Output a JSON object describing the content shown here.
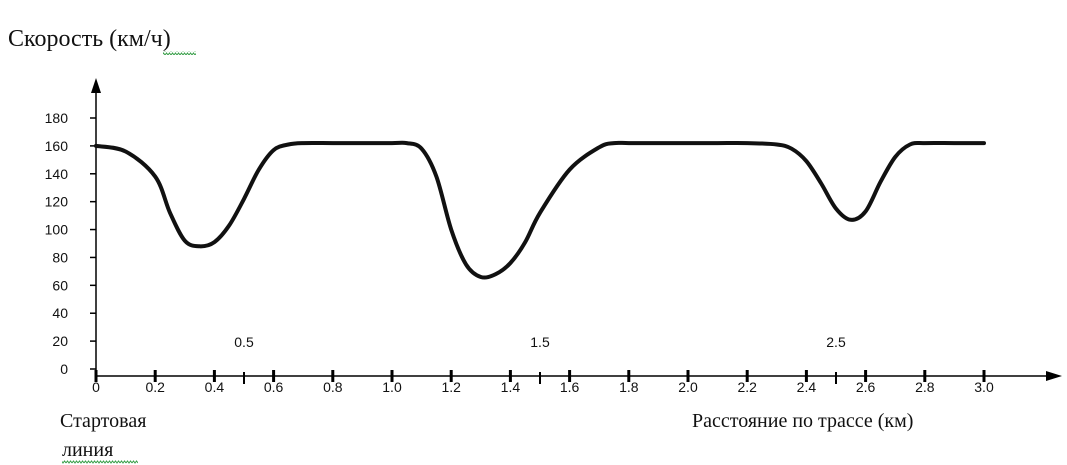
{
  "chart_data": {
    "type": "line",
    "title": "",
    "ylabel": "Скорость (км/ч)",
    "xlabel": "Расстояние по трассе (км)",
    "start_label": [
      "Стартовая",
      "линия"
    ],
    "xlim": [
      0,
      3.0
    ],
    "ylim": [
      0,
      180
    ],
    "yticks": [
      "0",
      "20",
      "40",
      "60",
      "80",
      "100",
      "120",
      "140",
      "160",
      "180"
    ],
    "xticks": [
      "0",
      "0.2",
      "0.4",
      "0.6",
      "0.8",
      "1.0",
      "1.2",
      "1.4",
      "1.6",
      "1.8",
      "2.0",
      "2.2",
      "2.4",
      "2.6",
      "2.8",
      "3.0"
    ],
    "marker_labels": [
      {
        "x": 0.5,
        "label": "0.5"
      },
      {
        "x": 1.5,
        "label": "1.5"
      },
      {
        "x": 2.5,
        "label": "2.5"
      }
    ],
    "grid": false,
    "series": [
      {
        "x": [
          0.0,
          0.1,
          0.2,
          0.25,
          0.3,
          0.35,
          0.4,
          0.45,
          0.5,
          0.55,
          0.6,
          0.65,
          0.7,
          0.8,
          0.9,
          1.0,
          1.05,
          1.1,
          1.15,
          1.2,
          1.25,
          1.3,
          1.35,
          1.4,
          1.45,
          1.5,
          1.6,
          1.7,
          1.75,
          1.8,
          1.9,
          2.0,
          2.1,
          2.2,
          2.3,
          2.35,
          2.4,
          2.45,
          2.5,
          2.55,
          2.6,
          2.65,
          2.7,
          2.75,
          2.8,
          2.9,
          3.0
        ],
        "y": [
          160,
          156,
          138,
          112,
          92,
          88,
          91,
          103,
          122,
          143,
          157,
          161,
          162,
          162,
          162,
          162,
          162,
          158,
          138,
          100,
          75,
          66,
          68,
          76,
          91,
          112,
          143,
          159,
          162,
          162,
          162,
          162,
          162,
          162,
          161,
          158,
          149,
          133,
          115,
          107,
          113,
          134,
          152,
          161,
          162,
          162,
          162
        ]
      }
    ]
  }
}
